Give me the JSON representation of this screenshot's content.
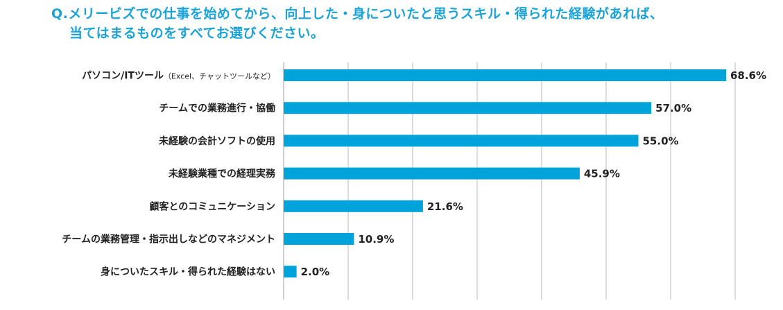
{
  "title": {
    "line1": "Q.メリービズでの仕事を始めてから、向上した・身についたと思うスキル・得られた経験があれば、",
    "line2": "当てはまるものをすべてお選びください。"
  },
  "colors": {
    "title": "#1aa3d8",
    "bar": "#00a3da",
    "grid": "#b8b8b8",
    "text": "#222222"
  },
  "chart_data": {
    "type": "bar",
    "orientation": "horizontal",
    "title": "Q.メリービズでの仕事を始めてから、向上した・身についたと思うスキル・得られた経験があれば、当てはまるものをすべてお選びください。",
    "categories": [
      {
        "main": "パソコン/ITツール",
        "sub": "（Excel、チャットツールなど）"
      },
      {
        "main": "チームでの業務進行・協働",
        "sub": ""
      },
      {
        "main": "未経験の会計ソフトの使用",
        "sub": ""
      },
      {
        "main": "未経験業種での経理実務",
        "sub": ""
      },
      {
        "main": "顧客とのコミュニケーション",
        "sub": ""
      },
      {
        "main": "チームの業務管理・指示出しなどのマネジメント",
        "sub": ""
      },
      {
        "main": "身についたスキル・得られた経験はない",
        "sub": ""
      }
    ],
    "values": [
      68.6,
      57.0,
      55.0,
      45.9,
      21.6,
      10.9,
      2.0
    ],
    "value_labels": [
      "68.6%",
      "57.0%",
      "55.0%",
      "45.9%",
      "21.6%",
      "10.9%",
      "2.0%"
    ],
    "unit": "%",
    "xlim": [
      0,
      70
    ],
    "grid_interval": 10,
    "grid": true,
    "xlabel": "",
    "ylabel": ""
  }
}
